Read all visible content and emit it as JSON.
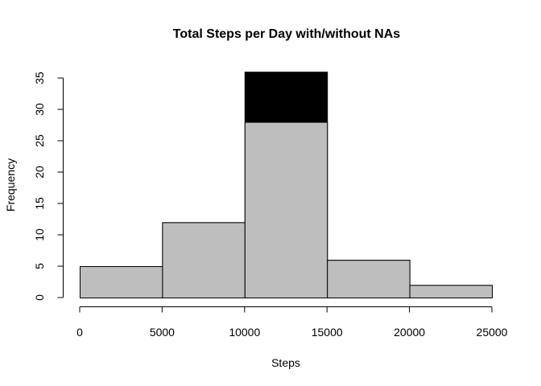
{
  "chart_data": {
    "type": "bar",
    "title": "Total Steps per Day with/without NAs",
    "xlabel": "Steps",
    "ylabel": "Frequency",
    "bin_edges": [
      0,
      5000,
      10000,
      15000,
      20000,
      25000
    ],
    "series": [
      {
        "name": "",
        "color": "#000000",
        "values": [
          5,
          12,
          36,
          6,
          2
        ]
      },
      {
        "name": "",
        "color": "#bebebe",
        "values": [
          5,
          12,
          28,
          6,
          2
        ]
      }
    ],
    "xlim": [
      0,
      25000
    ],
    "ylim": [
      0,
      35
    ],
    "x_ticks": [
      0,
      5000,
      10000,
      15000,
      20000,
      25000
    ],
    "y_ticks": [
      0,
      5,
      10,
      15,
      20,
      25,
      30,
      35
    ],
    "grid": false,
    "legend": "none"
  }
}
